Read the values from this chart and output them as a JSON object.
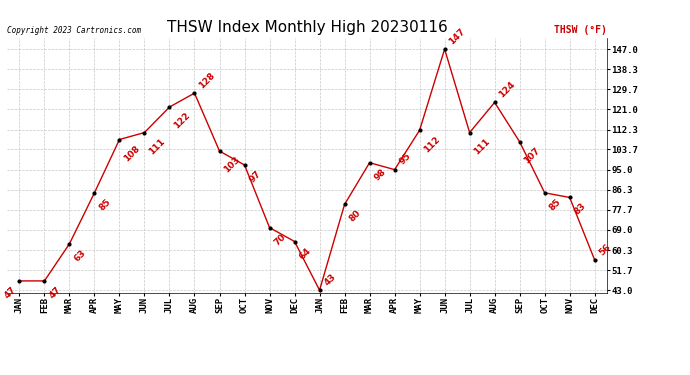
{
  "title": "THSW Index Monthly High 20230116",
  "copyright": "Copyright 2023 Cartronics.com",
  "legend_label": "THSW (°F)",
  "x_labels": [
    "JAN",
    "FEB",
    "MAR",
    "APR",
    "MAY",
    "JUN",
    "JUL",
    "AUG",
    "SEP",
    "OCT",
    "NOV",
    "DEC",
    "JAN",
    "FEB",
    "MAR",
    "APR",
    "MAY",
    "JUN",
    "JUL",
    "AUG",
    "SEP",
    "OCT",
    "NOV",
    "DEC"
  ],
  "values": [
    47,
    47,
    63,
    85,
    108,
    111,
    122,
    128,
    103,
    97,
    70,
    64,
    43,
    80,
    98,
    95,
    112,
    147,
    111,
    124,
    107,
    85,
    83,
    56
  ],
  "point_labels": [
    "47",
    "47",
    "63",
    "85",
    "108",
    "111",
    "122",
    "128",
    "103",
    "97",
    "70",
    "64",
    "43",
    "80",
    "98",
    "95",
    "112",
    "147",
    "111",
    "124",
    "107",
    "85",
    "83",
    "56"
  ],
  "yticks": [
    43.0,
    51.7,
    60.3,
    69.0,
    77.7,
    86.3,
    95.0,
    103.7,
    112.3,
    121.0,
    129.7,
    138.3,
    147.0
  ],
  "line_color": "#cc0000",
  "marker_color": "#000000",
  "title_color": "#000000",
  "legend_color": "#cc0000",
  "copyright_color": "#000000",
  "background_color": "#ffffff",
  "grid_color": "#c8c8c8",
  "title_fontsize": 11,
  "point_label_fontsize": 6.5,
  "tick_fontsize": 6.5
}
